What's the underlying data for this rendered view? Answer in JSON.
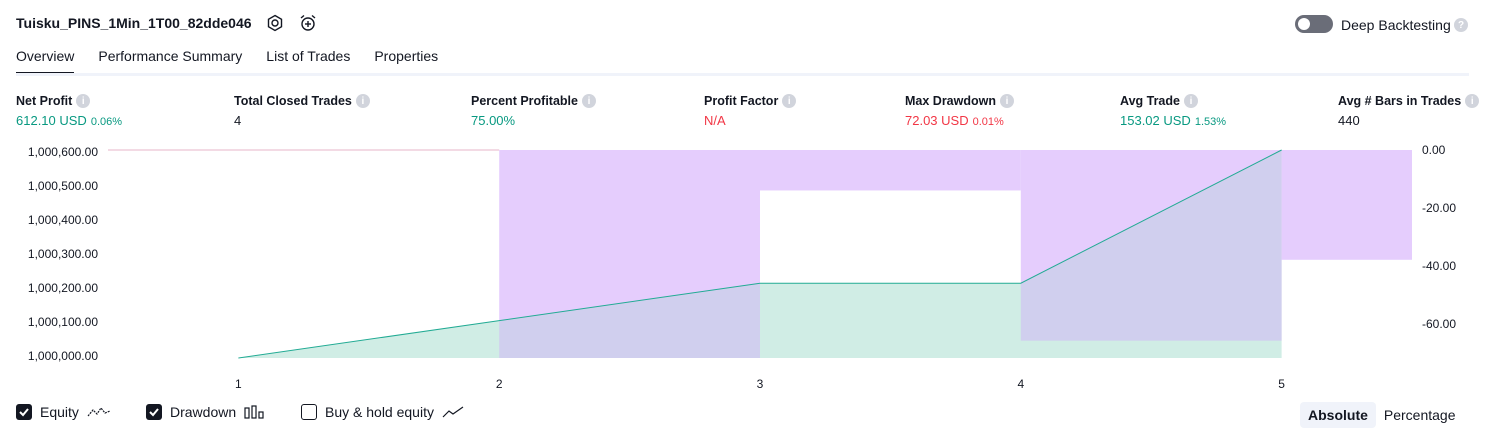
{
  "header": {
    "strategy_name": "Tuisku_PINS_1Min_1T00_82dde046",
    "deep_backtesting_label": "Deep Backtesting",
    "deep_backtesting_enabled": false
  },
  "tabs": [
    {
      "label": "Overview",
      "active": true
    },
    {
      "label": "Performance Summary",
      "active": false
    },
    {
      "label": "List of Trades",
      "active": false
    },
    {
      "label": "Properties",
      "active": false
    }
  ],
  "stats": {
    "net_profit": {
      "label": "Net Profit",
      "value": "612.10 USD",
      "pct": "0.06%"
    },
    "total_closed_trades": {
      "label": "Total Closed Trades",
      "value": "4"
    },
    "percent_profitable": {
      "label": "Percent Profitable",
      "value": "75.00%"
    },
    "profit_factor": {
      "label": "Profit Factor",
      "value": "N/A"
    },
    "max_drawdown": {
      "label": "Max Drawdown",
      "value": "72.03 USD",
      "pct": "0.01%"
    },
    "avg_trade": {
      "label": "Avg Trade",
      "value": "153.02 USD",
      "pct": "1.53%"
    },
    "avg_bars": {
      "label": "Avg # Bars in Trades",
      "value": "440"
    }
  },
  "colors": {
    "equity_line": "#22ab94",
    "equity_fill": "#e0f4ef",
    "drawdown_fill": "#e1c4fd",
    "positive": "#089981",
    "negative": "#f23645"
  },
  "chart_data": {
    "type": "area",
    "x": [
      1,
      2,
      3,
      4,
      5
    ],
    "x_tick_labels": [
      "1",
      "2",
      "3",
      "4",
      "5"
    ],
    "left_axis_ticks": [
      "1,000,600.00",
      "1,000,500.00",
      "1,000,400.00",
      "1,000,300.00",
      "1,000,200.00",
      "1,000,100.00",
      "1,000,000.00"
    ],
    "right_axis_ticks": [
      "0.00",
      "-20.00",
      "-40.00",
      "-60.00"
    ],
    "ylim_left": [
      1000000,
      1000612
    ],
    "ylim_right": [
      -72,
      0
    ],
    "series": [
      {
        "name": "Equity",
        "axis": "left",
        "values": [
          1000000,
          1000110,
          1000220,
          1000220,
          1000612
        ]
      },
      {
        "name": "Drawdown",
        "axis": "right",
        "values": [
          0,
          -72,
          -14,
          -66,
          -38
        ],
        "shape": "bars"
      }
    ]
  },
  "legend": {
    "equity": {
      "label": "Equity",
      "checked": true
    },
    "drawdown": {
      "label": "Drawdown",
      "checked": true
    },
    "buy_hold": {
      "label": "Buy & hold equity",
      "checked": false
    }
  },
  "mode": {
    "absolute": "Absolute",
    "percentage": "Percentage",
    "selected": "Absolute"
  }
}
